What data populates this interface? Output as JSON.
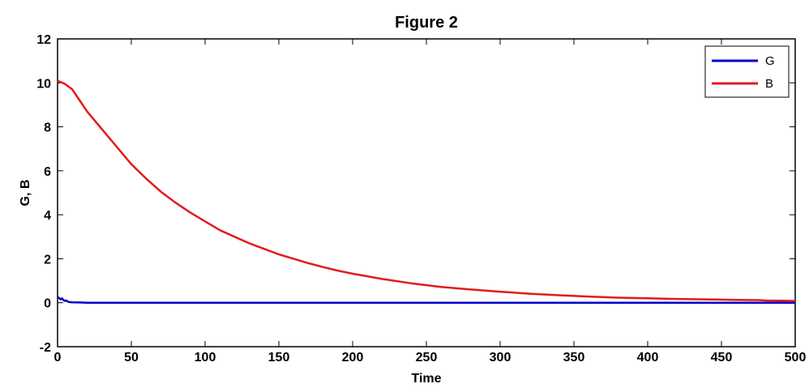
{
  "chart_data": {
    "type": "line",
    "title": "Figure 2",
    "xlabel": "Time",
    "ylabel": "G, B",
    "xlim": [
      0,
      500
    ],
    "ylim": [
      -2,
      12
    ],
    "xticks": [
      0,
      50,
      100,
      150,
      200,
      250,
      300,
      350,
      400,
      450,
      500
    ],
    "yticks": [
      -2,
      0,
      2,
      4,
      6,
      8,
      10,
      12
    ],
    "grid": false,
    "legend_position": "top-right",
    "series": [
      {
        "name": "G",
        "color": "#0000cc",
        "x": [
          0,
          1,
          2,
          3,
          4,
          5,
          6,
          7,
          8,
          10,
          15,
          20,
          50,
          100,
          200,
          300,
          400,
          500
        ],
        "y": [
          0.25,
          0.22,
          0.15,
          0.2,
          0.12,
          0.08,
          0.1,
          0.05,
          0.03,
          0.02,
          0.01,
          0,
          0,
          0,
          0,
          0,
          0,
          0
        ]
      },
      {
        "name": "B",
        "color": "#e31a1c",
        "x": [
          0,
          5,
          10,
          15,
          20,
          25,
          30,
          40,
          50,
          60,
          70,
          80,
          90,
          100,
          110,
          120,
          130,
          140,
          150,
          160,
          170,
          180,
          190,
          200,
          220,
          240,
          260,
          280,
          300,
          320,
          340,
          360,
          380,
          400,
          420,
          440,
          460,
          475,
          480,
          500
        ],
        "y": [
          10.1,
          9.95,
          9.7,
          9.2,
          8.7,
          8.3,
          7.9,
          7.1,
          6.3,
          5.65,
          5.05,
          4.55,
          4.1,
          3.7,
          3.3,
          3.0,
          2.7,
          2.45,
          2.2,
          2.0,
          1.8,
          1.62,
          1.46,
          1.32,
          1.08,
          0.88,
          0.72,
          0.6,
          0.5,
          0.41,
          0.34,
          0.28,
          0.23,
          0.2,
          0.17,
          0.15,
          0.13,
          0.12,
          0.1,
          0.08
        ]
      }
    ]
  }
}
